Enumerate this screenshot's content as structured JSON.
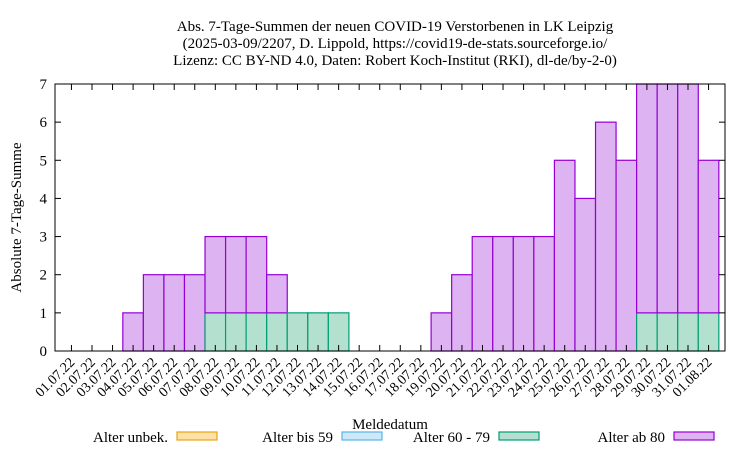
{
  "title_lines": [
    "Abs. 7-Tage-Summen der neuen COVID-19 Verstorbenen in LK Leipzig",
    "(2025-03-09/2207, D. Lippold, https://covid19-de-stats.sourceforge.io/",
    "Lizenz: CC BY-ND 4.0, Daten: Robert Koch-Institut (RKI), dl-de/by-2-0)"
  ],
  "chart_data": {
    "type": "bar",
    "stacked": true,
    "title": "Abs. 7-Tage-Summen der neuen COVID-19 Verstorbenen in LK Leipzig",
    "xlabel": "Meldedatum",
    "ylabel": "Absolute 7-Tage-Summe",
    "ylim": [
      0,
      7
    ],
    "yticks": [
      0,
      1,
      2,
      3,
      4,
      5,
      6,
      7
    ],
    "grid": false,
    "legend_position": "bottom",
    "categories": [
      "01.07.22",
      "02.07.22",
      "03.07.22",
      "04.07.22",
      "05.07.22",
      "06.07.22",
      "07.07.22",
      "08.07.22",
      "09.07.22",
      "10.07.22",
      "11.07.22",
      "12.07.22",
      "13.07.22",
      "14.07.22",
      "15.07.22",
      "16.07.22",
      "17.07.22",
      "18.07.22",
      "19.07.22",
      "20.07.22",
      "21.07.22",
      "22.07.22",
      "23.07.22",
      "24.07.22",
      "25.07.22",
      "26.07.22",
      "27.07.22",
      "28.07.22",
      "29.07.22",
      "30.07.22",
      "31.07.22",
      "01.08.22"
    ],
    "series": [
      {
        "name": "Alter unbek.",
        "fill": "#fde1a6",
        "stroke": "#e8a317",
        "values": [
          0,
          0,
          0,
          0,
          0,
          0,
          0,
          0,
          0,
          0,
          0,
          0,
          0,
          0,
          0,
          0,
          0,
          0,
          0,
          0,
          0,
          0,
          0,
          0,
          0,
          0,
          0,
          0,
          0,
          0,
          0,
          0
        ]
      },
      {
        "name": "Alter bis 59",
        "fill": "#cde8f6",
        "stroke": "#56b4e9",
        "values": [
          0,
          0,
          0,
          0,
          0,
          0,
          0,
          0,
          0,
          0,
          0,
          0,
          0,
          0,
          0,
          0,
          0,
          0,
          0,
          0,
          0,
          0,
          0,
          0,
          0,
          0,
          0,
          0,
          0,
          0,
          0,
          0
        ]
      },
      {
        "name": "Alter 60 - 79",
        "fill": "#b3e0cf",
        "stroke": "#009e73",
        "values": [
          0,
          0,
          0,
          0,
          0,
          0,
          0,
          1,
          1,
          1,
          1,
          1,
          1,
          1,
          0,
          0,
          0,
          0,
          0,
          0,
          0,
          0,
          0,
          0,
          0,
          0,
          0,
          0,
          1,
          1,
          1,
          1
        ]
      },
      {
        "name": "Alter ab 80",
        "fill": "#deb3f2",
        "stroke": "#9400d3",
        "values": [
          0,
          0,
          0,
          1,
          2,
          2,
          2,
          2,
          2,
          2,
          1,
          0,
          0,
          0,
          0,
          0,
          0,
          0,
          1,
          2,
          3,
          3,
          3,
          3,
          5,
          4,
          6,
          5,
          6,
          6,
          6,
          4
        ]
      }
    ]
  }
}
